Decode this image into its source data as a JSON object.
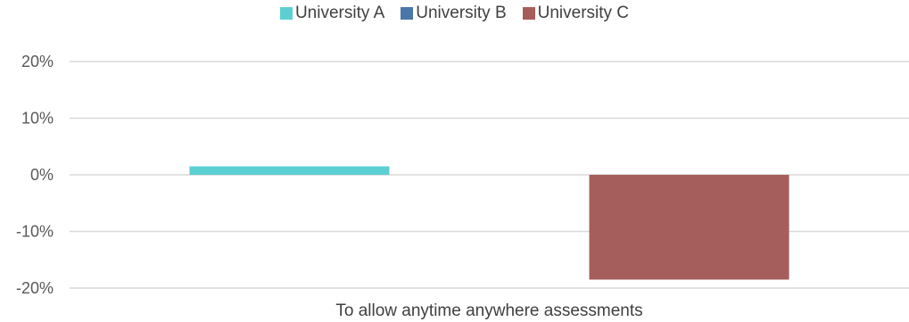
{
  "chart_data": {
    "type": "bar",
    "categories": [
      "To allow anytime anywhere assessments"
    ],
    "series": [
      {
        "name": "University A",
        "values": [
          1.5
        ],
        "color": "#5ccfd3"
      },
      {
        "name": "University B",
        "values": [
          0
        ],
        "color": "#4a76a8"
      },
      {
        "name": "University C",
        "values": [
          -18.5
        ],
        "color": "#a65e5c"
      }
    ],
    "yticks": [
      "20%",
      "10%",
      "0%",
      "-10%",
      "-20%"
    ],
    "ylim": [
      -20,
      20
    ],
    "ytick_step": 10,
    "grid": true,
    "legend_position": "top",
    "title": "",
    "xlabel": "",
    "ylabel": ""
  }
}
